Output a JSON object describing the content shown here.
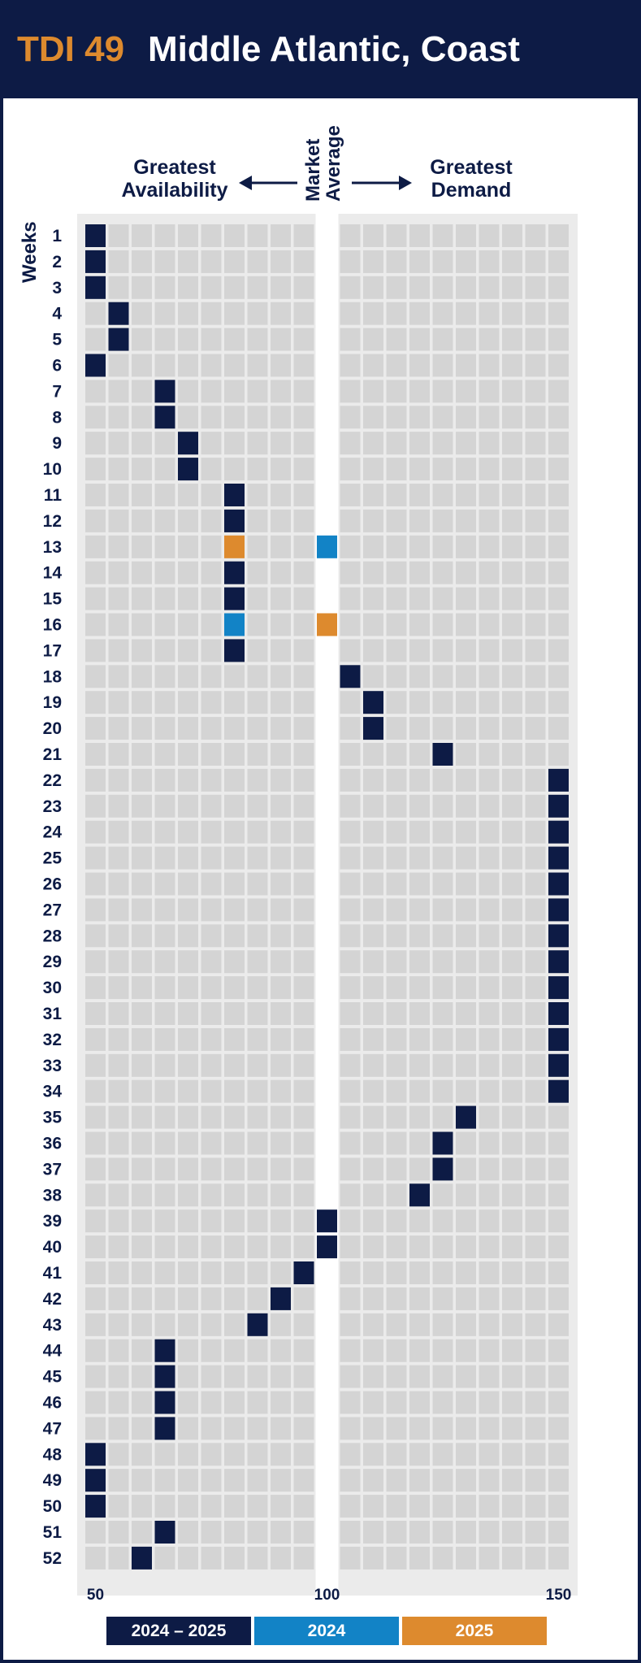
{
  "header": {
    "code": "TDI 49",
    "title": "Middle Atlantic, Coast"
  },
  "captions": {
    "left": "Greatest\nAvailability",
    "middle": "Market\nAverage",
    "right": "Greatest\nDemand",
    "y_axis": "Weeks"
  },
  "colors": {
    "header_bg": "#0d1b45",
    "accent_orange": "#dd8a2e",
    "grid_cell": "#d4d4d4",
    "grid_bg": "#ebebeb",
    "series_2024_2025": "#0d1b45",
    "series_2024": "#1283c6",
    "series_2025": "#dd8a2e"
  },
  "chart_data": {
    "type": "heatmap",
    "x_ticks": [
      50,
      100,
      150
    ],
    "x_range": [
      50,
      150
    ],
    "x_step": 5,
    "market_average": 100,
    "weeks": [
      1,
      2,
      3,
      4,
      5,
      6,
      7,
      8,
      9,
      10,
      11,
      12,
      13,
      14,
      15,
      16,
      17,
      18,
      19,
      20,
      21,
      22,
      23,
      24,
      25,
      26,
      27,
      28,
      29,
      30,
      31,
      32,
      33,
      34,
      35,
      36,
      37,
      38,
      39,
      40,
      41,
      42,
      43,
      44,
      45,
      46,
      47,
      48,
      49,
      50,
      51,
      52
    ],
    "legend": [
      "2024 – 2025",
      "2024",
      "2025"
    ],
    "series": [
      {
        "name": "2024 – 2025",
        "points": [
          [
            1,
            50
          ],
          [
            2,
            50
          ],
          [
            3,
            50
          ],
          [
            4,
            55
          ],
          [
            5,
            55
          ],
          [
            6,
            50
          ],
          [
            7,
            65
          ],
          [
            8,
            65
          ],
          [
            9,
            70
          ],
          [
            10,
            70
          ],
          [
            11,
            80
          ],
          [
            12,
            80
          ],
          [
            14,
            80
          ],
          [
            15,
            80
          ],
          [
            17,
            80
          ],
          [
            18,
            105
          ],
          [
            19,
            110
          ],
          [
            20,
            110
          ],
          [
            21,
            125
          ],
          [
            22,
            150
          ],
          [
            23,
            150
          ],
          [
            24,
            150
          ],
          [
            25,
            150
          ],
          [
            26,
            150
          ],
          [
            27,
            150
          ],
          [
            28,
            150
          ],
          [
            29,
            150
          ],
          [
            30,
            150
          ],
          [
            31,
            150
          ],
          [
            32,
            150
          ],
          [
            33,
            150
          ],
          [
            34,
            150
          ],
          [
            35,
            130
          ],
          [
            36,
            125
          ],
          [
            37,
            125
          ],
          [
            38,
            120
          ],
          [
            39,
            100
          ],
          [
            40,
            100
          ],
          [
            41,
            95
          ],
          [
            42,
            90
          ],
          [
            43,
            85
          ],
          [
            44,
            65
          ],
          [
            45,
            65
          ],
          [
            46,
            65
          ],
          [
            47,
            65
          ],
          [
            48,
            50
          ],
          [
            49,
            50
          ],
          [
            50,
            50
          ],
          [
            51,
            65
          ],
          [
            52,
            60
          ]
        ]
      },
      {
        "name": "2024",
        "points": [
          [
            13,
            100
          ],
          [
            16,
            80
          ]
        ]
      },
      {
        "name": "2025",
        "points": [
          [
            13,
            80
          ],
          [
            16,
            100
          ]
        ]
      }
    ]
  }
}
